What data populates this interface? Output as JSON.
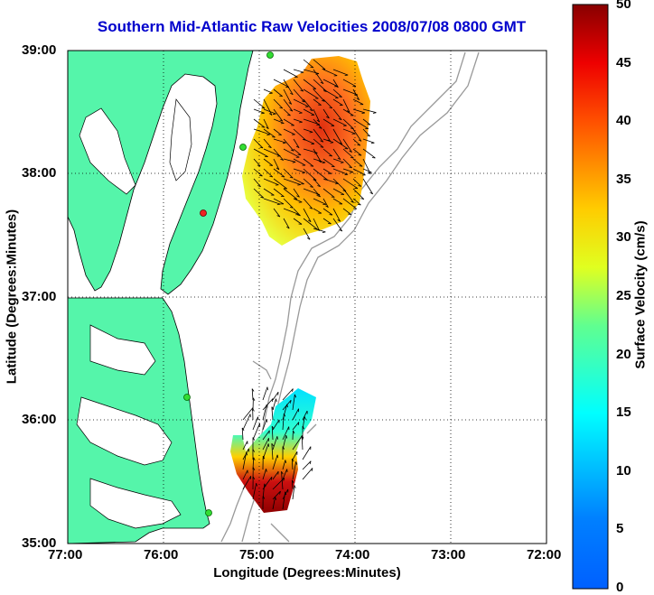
{
  "title": "Southern Mid-Atlantic Raw Velocities 2008/07/08 0800 GMT",
  "xlabel": "Longitude (Degrees:Minutes)",
  "ylabel": "Latitude (Degrees:Minutes)",
  "colorbar": {
    "label": "Surface Velocity (cm/s)",
    "min": 0,
    "max": 50,
    "ticks": [
      "0",
      "5",
      "10",
      "15",
      "20",
      "25",
      "30",
      "35",
      "40",
      "45",
      "50"
    ],
    "colormap": "jet"
  },
  "x_ticks": [
    "77:00",
    "76:00",
    "75:00",
    "74:00",
    "73:00",
    "72:00"
  ],
  "y_ticks": [
    "39:00",
    "38:00",
    "37:00",
    "36:00",
    "35:00"
  ],
  "colors": {
    "land": "#55f5aa",
    "title": "#0000cc",
    "grid": "#000000",
    "bathymetry": "#999999"
  },
  "chart_data": {
    "type": "map",
    "xlim": [
      -77,
      -72
    ],
    "ylim": [
      35,
      39
    ],
    "grid": true,
    "stations": [
      {
        "lon": -74.95,
        "lat": 38.95
      },
      {
        "lon": -75.12,
        "lat": 38.23
      },
      {
        "lon": -75.47,
        "lat": 37.67
      },
      {
        "lon": -75.78,
        "lat": 36.18
      },
      {
        "lon": -75.53,
        "lat": 35.23
      }
    ],
    "velocity_regions": [
      {
        "name": "north",
        "lon_range": [
          -75.3,
          -73.9
        ],
        "lat_range": [
          37.55,
          38.95
        ],
        "max_speed": 50
      },
      {
        "name": "south",
        "lon_range": [
          -75.45,
          -74.55
        ],
        "lat_range": [
          35.25,
          36.5
        ],
        "max_speed": 50
      }
    ]
  }
}
